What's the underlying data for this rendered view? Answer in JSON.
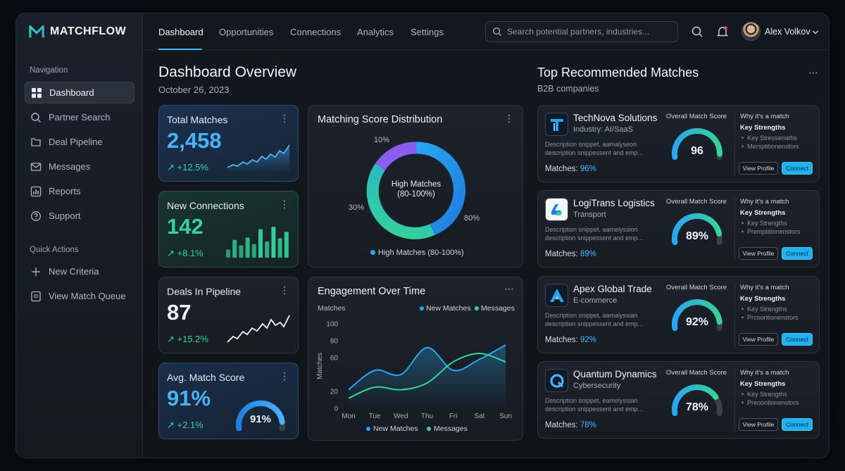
{
  "app": {
    "brand": "MATCHFLOW"
  },
  "sidebar": {
    "nav_heading": "Navigation",
    "items": [
      {
        "label": "Dashboard",
        "icon": "grid-icon",
        "active": true
      },
      {
        "label": "Partner Search",
        "icon": "search-icon"
      },
      {
        "label": "Deal Pipeline",
        "icon": "folder-icon"
      },
      {
        "label": "Messages",
        "icon": "mail-icon"
      },
      {
        "label": "Reports",
        "icon": "bar-chart-icon"
      },
      {
        "label": "Support",
        "icon": "help-icon"
      }
    ],
    "quick_heading": "Quick Actions",
    "quick": [
      {
        "label": "New Criteria",
        "icon": "plus-icon"
      },
      {
        "label": "View Match Queue",
        "icon": "list-icon"
      }
    ]
  },
  "topbar": {
    "tabs": [
      "Dashboard",
      "Opportunities",
      "Connections",
      "Analytics",
      "Settings"
    ],
    "active_tab": "Dashboard",
    "search_placeholder": "Search potential partners, industries...",
    "user_name": "Alex Volkov"
  },
  "page": {
    "title": "Dashboard Overview",
    "date": "October 26, 2023"
  },
  "kpis": {
    "total": {
      "title": "Total Matches",
      "value": "2,458",
      "delta": "↗ +12.5%",
      "color": "#4ab3ff"
    },
    "connections": {
      "title": "New Connections",
      "value": "142",
      "delta": "↗ +8.1%",
      "color": "#36d39a",
      "bars": [
        0.25,
        0.55,
        0.38,
        0.62,
        0.42,
        0.88,
        0.5,
        0.95,
        0.6,
        0.8
      ]
    },
    "deals": {
      "title": "Deals In Pipeline",
      "value": "87",
      "delta": "↗ +15.2%",
      "color": "#f2f5f9"
    },
    "avg": {
      "title": "Avg. Match Score",
      "value": "91%",
      "delta": "↗ +2.1%",
      "gauge_value": 0.91,
      "gauge_label": "91%",
      "color": "#4ab3ff"
    }
  },
  "donut": {
    "title": "Matching Score Distribution",
    "center_line1": "High Matches",
    "center_line2": "(80-100%)",
    "labels": [
      "10%",
      "30%",
      "80%"
    ],
    "legend": "High Matches (80-100%)"
  },
  "engagement": {
    "title": "Engagement Over Time",
    "matches_label": "Matches",
    "legend_top": [
      "New Matches",
      "Messages"
    ],
    "legend_bottom": [
      "New Matches",
      "Messages"
    ]
  },
  "chart_data": {
    "type": "line",
    "ylabel": "Matches",
    "ylim": [
      0,
      100
    ],
    "y_ticks": [
      "100",
      "80",
      "60",
      "20",
      "0"
    ],
    "categories": [
      "Mon",
      "Tue",
      "Wed",
      "Thu",
      "Fri",
      "Sat",
      "Sun"
    ],
    "series": [
      {
        "name": "New Matches",
        "color": "#2aa6f0",
        "values": [
          22,
          45,
          40,
          72,
          45,
          58,
          75
        ]
      },
      {
        "name": "Messages",
        "color": "#36d39a",
        "values": [
          12,
          25,
          22,
          30,
          55,
          65,
          55
        ]
      }
    ],
    "grid": false,
    "legend": "top-right"
  },
  "recommended": {
    "title": "Top Recommended Matches",
    "subtitle": "B2B companies",
    "score_label": "Overall Match Score",
    "why_label": "Why it's a match",
    "strengths_label": "Key Strengths",
    "view_label": "View Profile",
    "connect_label": "Connect",
    "matches_prefix": "Matches:",
    "items": [
      {
        "name": "TechNova Solutions",
        "industry": "Industry: AI/SaaS",
        "desc1": "Description snippet, aamalyseon",
        "desc2": "description snippessent and emp...",
        "pct": "96%",
        "score": "96",
        "score_value": 0.96,
        "b1": "Key Stressenaths",
        "b2": "Mersptitionenstors",
        "logo": "technova-logo"
      },
      {
        "name": "LogiTrans Logistics",
        "industry": "Transport",
        "desc1": "Description snippet, aamelyssion",
        "desc2": "description snippessent and emp...",
        "pct": "89%",
        "score": "89%",
        "score_value": 0.89,
        "b1": "Key Strengths",
        "b2": "Premptitionenstors",
        "logo": "logitrans-logo"
      },
      {
        "name": "Apex Global Trade",
        "industry": "E-commerce",
        "desc1": "Description snippet, aamalyssian",
        "desc2": "description snippessent and emp...",
        "pct": "92%",
        "score": "92%",
        "score_value": 0.92,
        "b1": "Key Strengths",
        "b2": "Prcoontionenstors",
        "logo": "apex-logo"
      },
      {
        "name": "Quantum Dynamics",
        "industry": "Cybersecurity",
        "desc1": "Description snippet, eamelyssian",
        "desc2": "description snippessent and emp...",
        "pct": "78%",
        "score": "78%",
        "score_value": 0.78,
        "b1": "Key Strengths",
        "b2": "Preoontionenstors",
        "logo": "quantum-logo"
      }
    ]
  }
}
